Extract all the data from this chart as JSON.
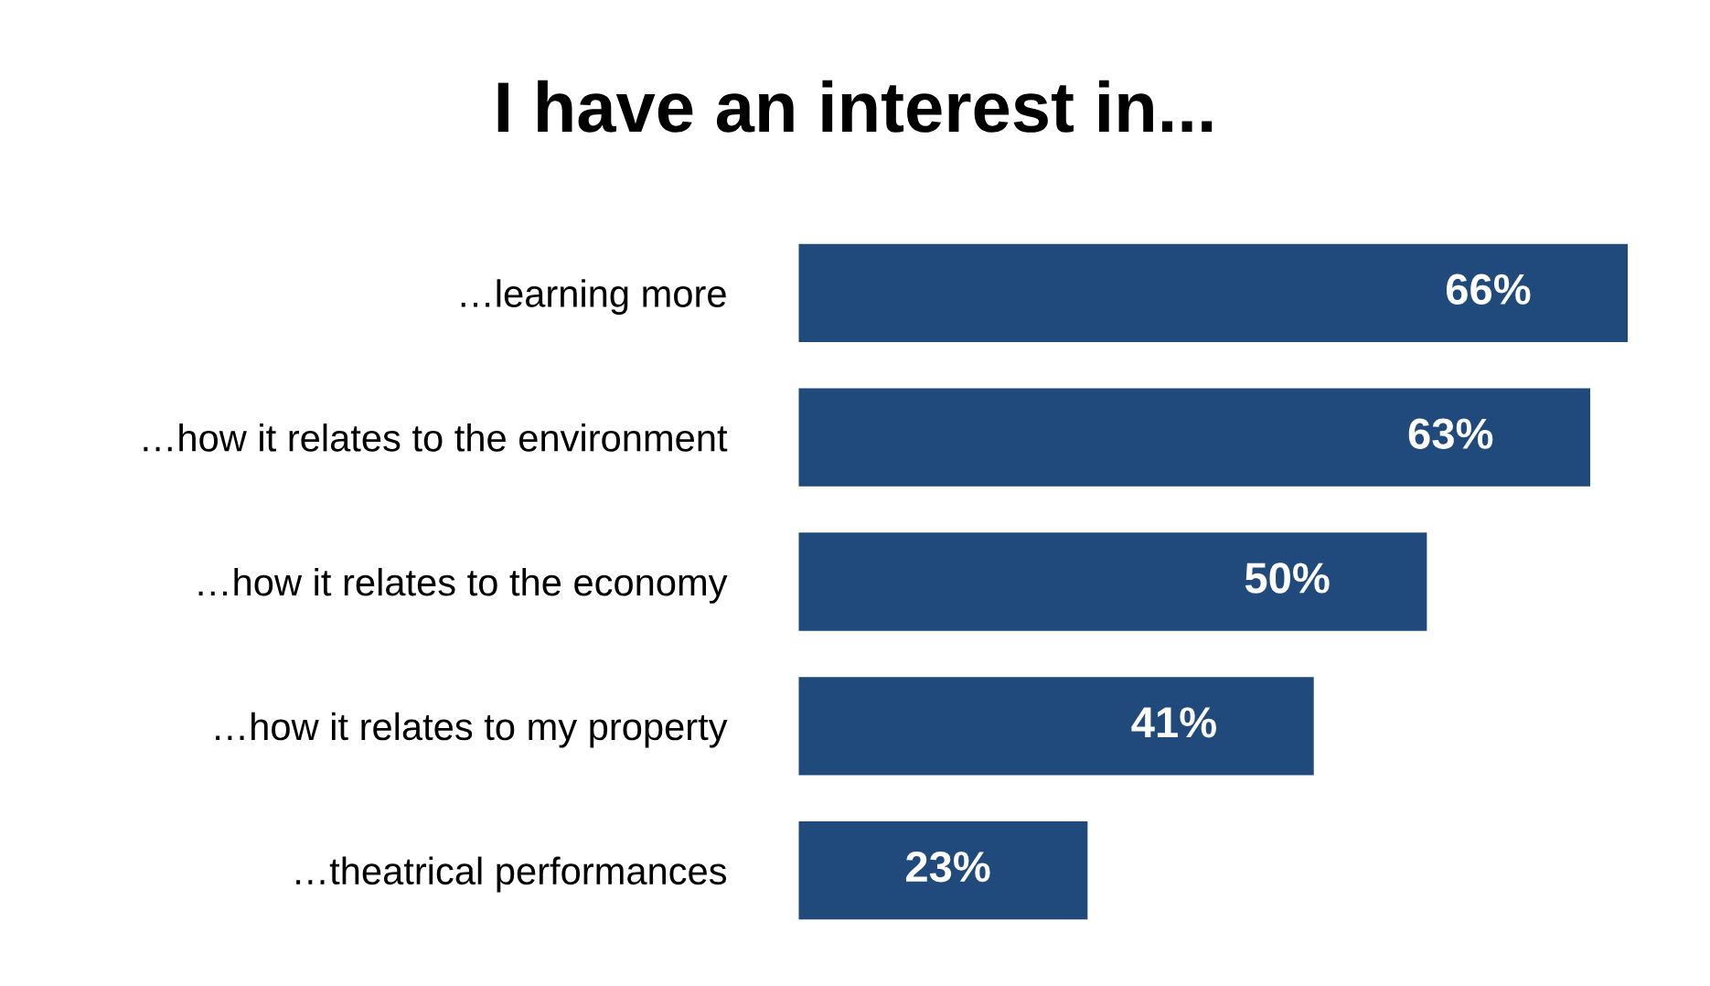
{
  "chart_data": {
    "type": "bar",
    "orientation": "horizontal",
    "title": "I have an interest in...",
    "categories": [
      "…learning more",
      "…how it relates to the environment",
      "…how it relates to the economy",
      "…how it relates to my property",
      "…theatrical performances"
    ],
    "values": [
      66,
      63,
      50,
      41,
      23
    ],
    "value_labels": [
      "66%",
      "63%",
      "50%",
      "41%",
      "23%"
    ],
    "color": "#214a7c",
    "grid": false,
    "legend": false
  }
}
